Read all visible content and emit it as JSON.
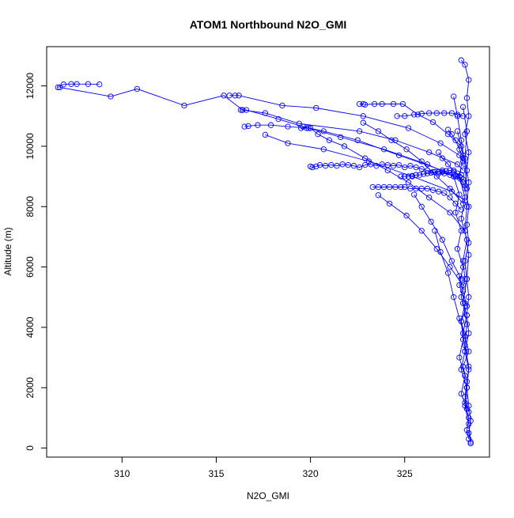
{
  "chart_data": {
    "type": "line",
    "title": "ATOM1 Northbound N2O_GMI",
    "xlabel": "N2O_GMI",
    "ylabel": "Altitude (m)",
    "xlim": [
      306.0,
      329.5
    ],
    "ylim": [
      -300,
      13300
    ],
    "x_ticks": [
      310,
      315,
      320,
      325
    ],
    "y_ticks": [
      0,
      2000,
      4000,
      6000,
      8000,
      10000,
      12000
    ],
    "grid": false,
    "legend": "none",
    "marker": "open-circle",
    "color": "#0000ff",
    "series": [
      {
        "x": [
          306.6,
          306.9,
          307.3,
          307.6,
          308.2,
          308.8
        ],
        "y": [
          11950,
          12050,
          12060,
          12060,
          12060,
          12050
        ]
      },
      {
        "x": [
          306.7,
          309.4,
          310.8,
          313.3,
          315.4,
          316.4,
          317.6,
          319.4,
          322.6,
          324.5,
          326.3,
          327.8,
          328.1
        ],
        "y": [
          11950,
          11650,
          11900,
          11350,
          11680,
          11200,
          11100,
          10750,
          10500,
          10200,
          9800,
          9400,
          9200
        ]
      },
      {
        "x": [
          315.7,
          316.0,
          316.2,
          318.5,
          320.3,
          322.8,
          325.2,
          326.9,
          327.9,
          328.1
        ],
        "y": [
          11680,
          11680,
          11680,
          11350,
          11270,
          11000,
          10600,
          10100,
          9700,
          9500
        ]
      },
      {
        "x": [
          316.5,
          316.7,
          317.2,
          317.9,
          318.8,
          319.9,
          321.6,
          323.9,
          326.2,
          327.6,
          328.2
        ],
        "y": [
          10650,
          10670,
          10700,
          10700,
          10650,
          10600,
          10300,
          9900,
          9400,
          9000,
          8700
        ]
      },
      {
        "x": [
          316.3,
          316.4,
          316.6,
          318.3,
          319.6,
          320.7,
          322.5,
          324.7,
          327.0,
          328.1
        ],
        "y": [
          11200,
          11200,
          11200,
          10900,
          10650,
          10500,
          10200,
          9700,
          9200,
          8900
        ]
      },
      {
        "x": [
          317.6,
          318.8,
          320.7,
          323.1,
          325.4,
          327.5,
          328.2
        ],
        "y": [
          10380,
          10100,
          9900,
          9500,
          9000,
          8500,
          8200
        ]
      },
      {
        "x": [
          319.5,
          319.8,
          320.0,
          320.4,
          321.0,
          321.8,
          322.9,
          324.1,
          325.2,
          326.3,
          327.4,
          328.2
        ],
        "y": [
          10600,
          10600,
          10600,
          10400,
          10200,
          10000,
          9600,
          9200,
          8800,
          8300,
          7800,
          7200
        ]
      },
      {
        "x": [
          320.0,
          320.1,
          320.3,
          320.5,
          320.8,
          321.1,
          321.4,
          321.7,
          322.0,
          322.3,
          322.6,
          322.9,
          323.2,
          323.5,
          323.8,
          324.1,
          324.4,
          324.7,
          325.0,
          325.3,
          325.6,
          325.9,
          326.2,
          326.5,
          326.8,
          327.1,
          327.4,
          327.7,
          328.0
        ],
        "y": [
          9330,
          9300,
          9330,
          9380,
          9350,
          9380,
          9350,
          9400,
          9380,
          9350,
          9300,
          9380,
          9400,
          9350,
          9400,
          9380,
          9350,
          9380,
          9300,
          9350,
          9300,
          9250,
          9200,
          9150,
          9100,
          9100,
          9050,
          9000,
          8950
        ]
      },
      {
        "x": [
          322.6,
          322.8,
          322.9,
          323.4,
          323.8,
          324.4,
          324.9,
          325.7,
          326.5,
          327.3,
          328.0
        ],
        "y": [
          11400,
          11400,
          11380,
          11400,
          11400,
          11400,
          11400,
          11050,
          10800,
          10400,
          10000
        ]
      },
      {
        "x": [
          322.8,
          323.6,
          324.3,
          325.1,
          325.9,
          326.7,
          327.4,
          328.1
        ],
        "y": [
          10780,
          10500,
          10200,
          9900,
          9500,
          9000,
          8600,
          8100
        ]
      },
      {
        "x": [
          323.3,
          323.6,
          323.9,
          324.2,
          324.5,
          324.8,
          325.0,
          325.3,
          325.6,
          325.9,
          326.2,
          326.5,
          326.8,
          327.1,
          327.4,
          327.7,
          328.0
        ],
        "y": [
          8650,
          8650,
          8650,
          8650,
          8650,
          8650,
          8650,
          8600,
          8600,
          8600,
          8600,
          8550,
          8500,
          8450,
          8300,
          8100,
          7900
        ]
      },
      {
        "x": [
          323.6,
          324.2,
          325.1,
          325.9,
          326.7,
          327.4,
          328.1
        ],
        "y": [
          8380,
          8100,
          7700,
          7200,
          6600,
          6000,
          5400
        ]
      },
      {
        "x": [
          324.8,
          325.0,
          325.2,
          325.4,
          325.6,
          325.8,
          326.0,
          326.2,
          326.4,
          326.6,
          326.8,
          327.0,
          327.2,
          327.4,
          327.6,
          327.8,
          328.0
        ],
        "y": [
          9000,
          9000,
          9000,
          9020,
          9050,
          9050,
          9080,
          9100,
          9120,
          9150,
          9150,
          9150,
          9180,
          9200,
          9150,
          9100,
          9050
        ]
      },
      {
        "x": [
          324.6,
          325.0,
          325.5,
          325.9,
          326.3,
          326.7,
          327.1,
          327.5,
          327.8,
          328.1
        ],
        "y": [
          11000,
          11000,
          11050,
          11080,
          11100,
          11100,
          11100,
          11100,
          11050,
          11000
        ]
      },
      {
        "x": [
          325.5,
          325.9,
          326.4,
          327.0,
          327.5,
          328.0
        ],
        "y": [
          8400,
          8000,
          7500,
          6900,
          6200,
          5600
        ]
      },
      {
        "x": [
          326.6,
          326.9,
          327.3,
          327.6,
          327.9,
          328.2
        ],
        "y": [
          7200,
          6500,
          5800,
          5000,
          4300,
          3700
        ]
      },
      {
        "x": [
          326.8,
          327.0,
          327.3,
          327.6,
          327.9,
          328.1
        ],
        "y": [
          9800,
          9600,
          9400,
          9200,
          9000,
          8800
        ]
      },
      {
        "x": [
          327.3,
          327.5,
          327.7,
          327.9,
          328.1
        ],
        "y": [
          10550,
          10400,
          10200,
          9900,
          9600
        ]
      },
      {
        "x": [
          327.6,
          327.8,
          328.0,
          328.2,
          328.3
        ],
        "y": [
          11650,
          11000,
          10200,
          9400,
          8600
        ]
      },
      {
        "x": [
          328.0,
          328.2,
          328.4,
          328.3,
          328.4,
          328.2,
          328.4,
          328.3,
          328.2,
          328.4,
          328.3,
          328.4,
          328.2,
          328.3,
          328.4,
          328.3,
          328.4,
          328.2,
          328.4,
          328.3,
          328.4,
          328.5,
          328.4,
          328.5
        ],
        "y": [
          12850,
          12700,
          12200,
          11600,
          11000,
          10400,
          9800,
          9200,
          8600,
          8000,
          7400,
          6800,
          6200,
          5600,
          5000,
          4400,
          3800,
          3200,
          2600,
          2000,
          1400,
          900,
          500,
          150
        ]
      },
      {
        "x": [
          327.8,
          328.1,
          327.9,
          328.2,
          328.0,
          328.3,
          328.1,
          328.2,
          328.0,
          328.3,
          328.1,
          328.2,
          328.0,
          328.3,
          328.2,
          328.4,
          328.3,
          328.4
        ],
        "y": [
          10500,
          9700,
          9000,
          8300,
          7600,
          6900,
          6200,
          5600,
          5000,
          4400,
          3800,
          3200,
          2600,
          2000,
          1500,
          1000,
          600,
          300
        ]
      },
      {
        "x": [
          328.1,
          328.3,
          328.2,
          328.4,
          328.3,
          328.2,
          328.4,
          328.3,
          328.1,
          328.3,
          328.2,
          328.4,
          328.3,
          328.2,
          328.4,
          328.5
        ],
        "y": [
          11300,
          10500,
          9600,
          8800,
          8000,
          7200,
          6400,
          5600,
          4800,
          4100,
          3400,
          2700,
          2000,
          1400,
          800,
          200
        ]
      },
      {
        "x": [
          327.6,
          327.9,
          327.7,
          328.0,
          327.8,
          328.1,
          327.9,
          328.2,
          328.0,
          328.1,
          327.9,
          328.2,
          328.0,
          328.3
        ],
        "y": [
          9000,
          8400,
          7800,
          7200,
          6600,
          6000,
          5400,
          4800,
          4200,
          3600,
          3000,
          2400,
          1800,
          1300
        ]
      },
      {
        "x": [
          327.9,
          328.1,
          328.3,
          328.0,
          328.2,
          328.4,
          328.1,
          328.3,
          328.2,
          328.4
        ],
        "y": [
          5700,
          5200,
          4700,
          4200,
          3700,
          3200,
          2700,
          2200,
          1700,
          1200
        ]
      }
    ]
  }
}
